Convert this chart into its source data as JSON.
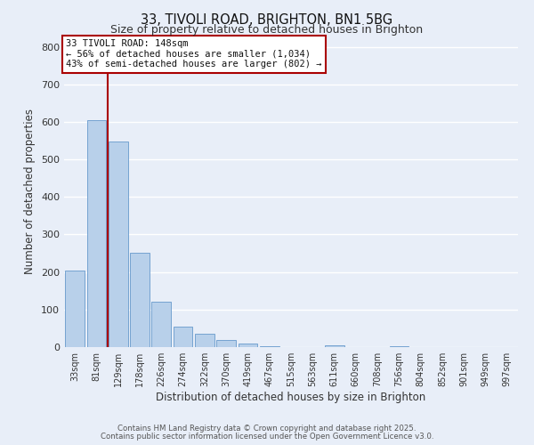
{
  "title1": "33, TIVOLI ROAD, BRIGHTON, BN1 5BG",
  "title2": "Size of property relative to detached houses in Brighton",
  "xlabel": "Distribution of detached houses by size in Brighton",
  "ylabel": "Number of detached properties",
  "bar_labels": [
    "33sqm",
    "81sqm",
    "129sqm",
    "178sqm",
    "226sqm",
    "274sqm",
    "322sqm",
    "370sqm",
    "419sqm",
    "467sqm",
    "515sqm",
    "563sqm",
    "611sqm",
    "660sqm",
    "708sqm",
    "756sqm",
    "804sqm",
    "852sqm",
    "901sqm",
    "949sqm",
    "997sqm"
  ],
  "bar_values": [
    203,
    605,
    547,
    251,
    121,
    55,
    35,
    18,
    10,
    2,
    0,
    0,
    5,
    0,
    0,
    2,
    0,
    0,
    0,
    0,
    0
  ],
  "bar_color": "#b8d0ea",
  "bar_edgecolor": "#6699cc",
  "vline_color": "#aa0000",
  "ylim": [
    0,
    830
  ],
  "yticks": [
    0,
    100,
    200,
    300,
    400,
    500,
    600,
    700,
    800
  ],
  "annotation_title": "33 TIVOLI ROAD: 148sqm",
  "annotation_line1": "← 56% of detached houses are smaller (1,034)",
  "annotation_line2": "43% of semi-detached houses are larger (802) →",
  "annotation_box_color": "#ffffff",
  "annotation_box_edgecolor": "#aa0000",
  "footer1": "Contains HM Land Registry data © Crown copyright and database right 2025.",
  "footer2": "Contains public sector information licensed under the Open Government Licence v3.0.",
  "background_color": "#e8eef8",
  "grid_color": "#ffffff"
}
